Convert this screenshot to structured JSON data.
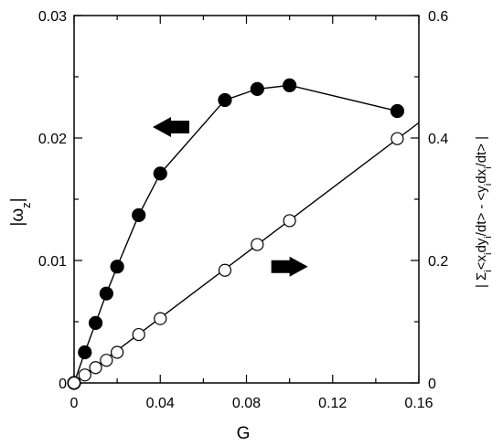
{
  "chart_data": {
    "type": "scatter",
    "title": "",
    "xlabel": "G",
    "ylabel_left": "|ωz|",
    "ylabel_right": "| Σi<xi dyi/dt> - <yi dxi/dt> |",
    "xlim": [
      0,
      0.16
    ],
    "ylim_left": [
      0,
      0.03
    ],
    "ylim_right": [
      0,
      0.6
    ],
    "x_ticks": [
      0,
      0.04,
      0.08,
      0.12,
      0.16
    ],
    "x_tick_labels": [
      "0",
      "0.04",
      "0.08",
      "0.12",
      "0.16"
    ],
    "y_left_ticks": [
      0,
      0.01,
      0.02,
      0.03
    ],
    "y_left_tick_labels": [
      "0",
      "0.01",
      "0.02",
      "0.03"
    ],
    "y_right_ticks": [
      0,
      0.2,
      0.4,
      0.6
    ],
    "y_right_tick_labels": [
      "0",
      "0.2",
      "0.4",
      "0.6"
    ],
    "grid": false,
    "series": [
      {
        "axis": "left",
        "marker": "filled-circle",
        "connected": true,
        "x": [
          0,
          0.005,
          0.01,
          0.015,
          0.02,
          0.03,
          0.04,
          0.07,
          0.085,
          0.1,
          0.15
        ],
        "y": [
          0,
          0.0025,
          0.0049,
          0.0073,
          0.0095,
          0.0137,
          0.0171,
          0.0231,
          0.024,
          0.0243,
          0.0222
        ]
      },
      {
        "axis": "right",
        "marker": "open-circle",
        "connected": false,
        "x": [
          0,
          0.005,
          0.01,
          0.015,
          0.02,
          0.03,
          0.04,
          0.07,
          0.085,
          0.1,
          0.15
        ],
        "y": [
          0,
          0.013,
          0.025,
          0.037,
          0.05,
          0.079,
          0.105,
          0.184,
          0.226,
          0.265,
          0.399
        ]
      }
    ],
    "fit_line": {
      "axis": "right",
      "x": [
        0,
        0.16
      ],
      "y": [
        0,
        0.425
      ]
    },
    "annotations": [
      {
        "type": "arrow",
        "direction": "left",
        "points_to": "left-axis",
        "at": {
          "x": 0.045,
          "y": 0.0209
        }
      },
      {
        "type": "arrow",
        "direction": "right",
        "points_to": "right-axis",
        "at": {
          "x": 0.1,
          "y": 0.0095
        }
      }
    ]
  }
}
